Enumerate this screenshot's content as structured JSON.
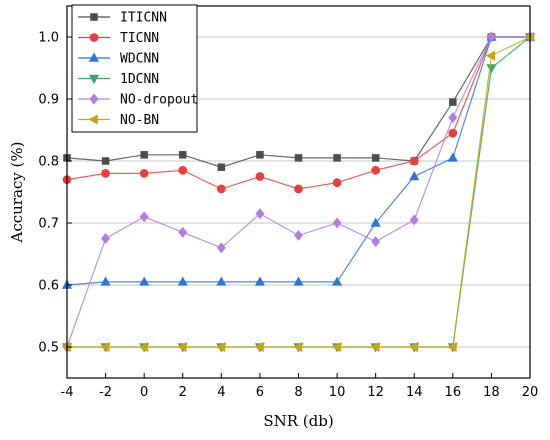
{
  "chart_data": {
    "type": "line",
    "xlabel": "SNR (db)",
    "ylabel": "Accuracy (%)",
    "xlim": [
      -4,
      20
    ],
    "ylim": [
      0.45,
      1.05
    ],
    "x": [
      -4,
      -2,
      0,
      2,
      4,
      6,
      8,
      10,
      12,
      14,
      16,
      18,
      20
    ],
    "xticks": [
      "-4",
      "-2",
      "0",
      "2",
      "4",
      "6",
      "8",
      "10",
      "12",
      "14",
      "16",
      "18",
      "20"
    ],
    "yticks": [
      "0.5",
      "0.6",
      "0.7",
      "0.8",
      "0.9",
      "1.0"
    ],
    "grid": "horizontal",
    "legend_position": "top-left",
    "series": [
      {
        "name": "ITICNN",
        "color": "#4d4d4d",
        "marker": "square",
        "values": [
          0.805,
          0.8,
          0.81,
          0.81,
          0.79,
          0.81,
          0.805,
          0.805,
          0.805,
          0.8,
          0.895,
          1.0,
          1.0
        ]
      },
      {
        "name": "TICNN",
        "color": "#e8403d",
        "marker": "circle",
        "values": [
          0.77,
          0.78,
          0.78,
          0.785,
          0.755,
          0.775,
          0.755,
          0.765,
          0.785,
          0.8,
          0.845,
          1.0,
          1.0
        ]
      },
      {
        "name": "WDCNN",
        "color": "#2f76d6",
        "marker": "triangle-up",
        "values": [
          0.6,
          0.605,
          0.605,
          0.605,
          0.605,
          0.605,
          0.605,
          0.605,
          0.7,
          0.775,
          0.805,
          1.0,
          1.0
        ]
      },
      {
        "name": "1DCNN",
        "color": "#3aa56b",
        "marker": "triangle-down",
        "values": [
          0.5,
          0.5,
          0.5,
          0.5,
          0.5,
          0.5,
          0.5,
          0.5,
          0.5,
          0.5,
          0.5,
          0.95,
          1.0
        ]
      },
      {
        "name": "NO-dropout",
        "color": "#b27fe0",
        "marker": "diamond",
        "values": [
          0.5,
          0.675,
          0.71,
          0.685,
          0.66,
          0.715,
          0.68,
          0.7,
          0.67,
          0.705,
          0.87,
          1.0,
          1.0
        ]
      },
      {
        "name": "NO-BN",
        "color": "#c9a312",
        "marker": "triangle-left",
        "values": [
          0.5,
          0.5,
          0.5,
          0.5,
          0.5,
          0.5,
          0.5,
          0.5,
          0.5,
          0.5,
          0.5,
          0.97,
          1.0
        ]
      }
    ]
  }
}
